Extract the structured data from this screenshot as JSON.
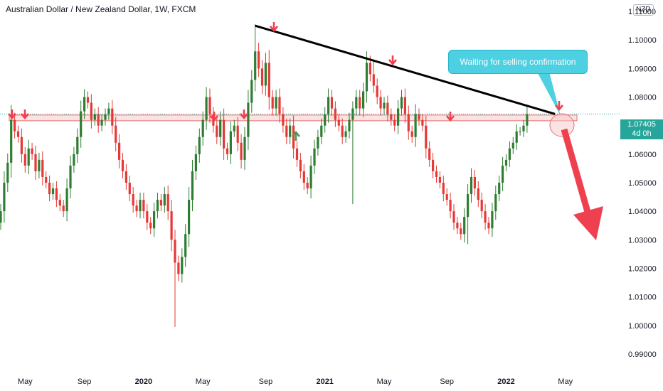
{
  "header": {
    "title": "Australian Dollar / New Zealand Dollar, 1W, FXCM"
  },
  "axis": {
    "currency": "NZD"
  },
  "last_price": {
    "value": "1.07405",
    "countdown": "4d 0h"
  },
  "annotation": {
    "text": "Waiting for selling confirmation"
  },
  "colors": {
    "up": "#26a69a",
    "down": "#ef5350",
    "candle_up": "#2e7d32",
    "candle_down": "#e53935",
    "zone_fill": "#f8d0d0",
    "zone_stroke": "#e57373",
    "trend": "#000000",
    "arrow": "#ef4050",
    "callout": "#4dd0e1",
    "support_arrow": "#5b8f5e"
  },
  "chart_data": {
    "type": "candlestick",
    "title": "Australian Dollar / New Zealand Dollar, 1W, FXCM",
    "ylim": [
      0.985,
      1.114
    ],
    "y_ticks": [
      "0.99000",
      "1.00000",
      "1.01000",
      "1.02000",
      "1.03000",
      "1.04000",
      "1.05000",
      "1.06000",
      "1.07000",
      "1.08000",
      "1.09000",
      "1.10000",
      "1.11000"
    ],
    "x_ticks": [
      {
        "label": "May",
        "bold": false,
        "index": 7
      },
      {
        "label": "Sep",
        "bold": false,
        "index": 24
      },
      {
        "label": "2020",
        "bold": true,
        "index": 41
      },
      {
        "label": "May",
        "bold": false,
        "index": 58
      },
      {
        "label": "Sep",
        "bold": false,
        "index": 76
      },
      {
        "label": "2021",
        "bold": true,
        "index": 93
      },
      {
        "label": "May",
        "bold": false,
        "index": 110
      },
      {
        "label": "Sep",
        "bold": false,
        "index": 128
      },
      {
        "label": "2022",
        "bold": true,
        "index": 145
      },
      {
        "label": "May",
        "bold": false,
        "index": 162
      }
    ],
    "resistance_zone": [
      1.0717,
      1.0737
    ],
    "trendline": [
      {
        "index": 73,
        "value": 1.105
      },
      {
        "index": 155,
        "value": 1.0755
      }
    ],
    "close": [
      1.04,
      1.05,
      1.057,
      1.072,
      1.068,
      1.066,
      1.06,
      1.056,
      1.062,
      1.06,
      1.054,
      1.058,
      1.052,
      1.05,
      1.046,
      1.048,
      1.044,
      1.042,
      1.04,
      1.048,
      1.056,
      1.06,
      1.066,
      1.075,
      1.08,
      1.078,
      1.072,
      1.074,
      1.07,
      1.072,
      1.074,
      1.076,
      1.07,
      1.064,
      1.058,
      1.054,
      1.05,
      1.046,
      1.042,
      1.04,
      1.044,
      1.04,
      1.036,
      1.034,
      1.04,
      1.044,
      1.042,
      1.046,
      1.04,
      1.03,
      1.022,
      1.018,
      1.024,
      1.032,
      1.044,
      1.054,
      1.06,
      1.066,
      1.072,
      1.08,
      1.074,
      1.07,
      1.066,
      1.072,
      1.062,
      1.06,
      1.068,
      1.07,
      1.064,
      1.058,
      1.066,
      1.078,
      1.086,
      1.096,
      1.09,
      1.084,
      1.092,
      1.08,
      1.076,
      1.08,
      1.074,
      1.07,
      1.066,
      1.07,
      1.062,
      1.058,
      1.054,
      1.05,
      1.048,
      1.056,
      1.062,
      1.066,
      1.07,
      1.074,
      1.08,
      1.076,
      1.072,
      1.07,
      1.066,
      1.068,
      1.072,
      1.076,
      1.08,
      1.076,
      1.082,
      1.092,
      1.088,
      1.084,
      1.08,
      1.076,
      1.078,
      1.074,
      1.072,
      1.07,
      1.076,
      1.08,
      1.074,
      1.068,
      1.066,
      1.074,
      1.072,
      1.07,
      1.062,
      1.058,
      1.054,
      1.052,
      1.05,
      1.046,
      1.044,
      1.04,
      1.036,
      1.034,
      1.032,
      1.038,
      1.046,
      1.052,
      1.048,
      1.044,
      1.04,
      1.036,
      1.034,
      1.04,
      1.046,
      1.05,
      1.056,
      1.058,
      1.062,
      1.064,
      1.068,
      1.068,
      1.07,
      1.074
    ],
    "notable_lows": [
      {
        "index": 50,
        "value": 0.9995
      },
      {
        "index": 101,
        "value": 1.0425
      },
      {
        "index": 134,
        "value": 1.0285
      }
    ],
    "notable_highs": [
      {
        "index": 73,
        "value": 1.1055
      },
      {
        "index": 107,
        "value": 1.093
      }
    ]
  }
}
